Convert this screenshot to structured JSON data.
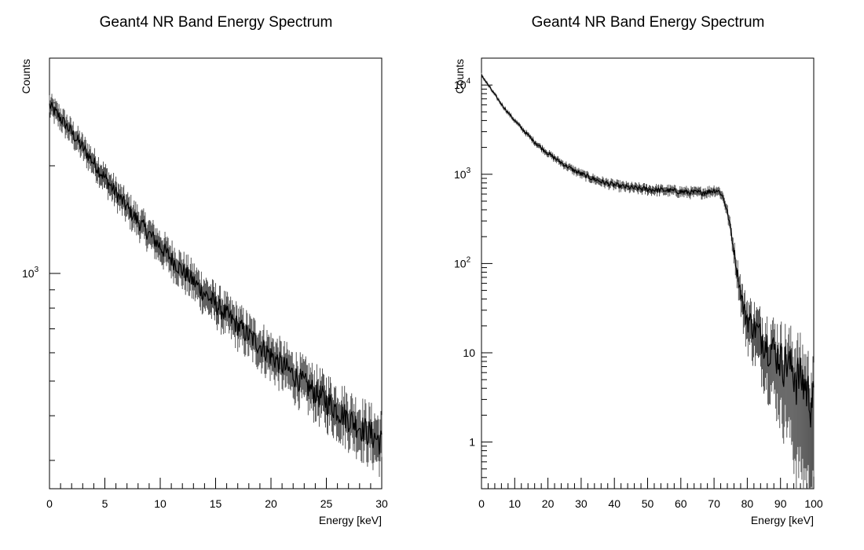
{
  "chart_data": [
    {
      "type": "line",
      "title": "Geant4 NR Band Energy Spectrum",
      "xlabel": "Energy [keV]",
      "ylabel": "Counts",
      "xlim": [
        0,
        30
      ],
      "ylim": [
        250,
        4000
      ],
      "log_y": true,
      "grid": false,
      "x_ticks": [
        0,
        5,
        10,
        15,
        20,
        25,
        30
      ],
      "y_ticks": [
        {
          "value": 1000,
          "label": "10",
          "exp": "3"
        }
      ],
      "x": [
        0,
        1,
        2,
        3,
        4,
        5,
        6,
        7,
        8,
        9,
        10,
        11,
        12,
        13,
        14,
        15,
        16,
        17,
        18,
        19,
        20,
        21,
        22,
        23,
        24,
        25,
        26,
        27,
        28,
        29,
        30
      ],
      "y": [
        2950,
        2720,
        2480,
        2250,
        2040,
        1850,
        1680,
        1530,
        1400,
        1290,
        1190,
        1100,
        1020,
        950,
        880,
        820,
        765,
        715,
        670,
        630,
        590,
        555,
        522,
        492,
        465,
        440,
        416,
        394,
        374,
        355,
        338
      ]
    },
    {
      "type": "line",
      "title": "Geant4 NR Band Energy Spectrum",
      "xlabel": "Energy [keV]",
      "ylabel": "Counts",
      "xlim": [
        0,
        100
      ],
      "ylim": [
        0.3,
        20000
      ],
      "log_y": true,
      "grid": false,
      "x_ticks": [
        0,
        10,
        20,
        30,
        40,
        50,
        60,
        70,
        80,
        90,
        100
      ],
      "y_ticks": [
        {
          "value": 1,
          "label": "1",
          "exp": ""
        },
        {
          "value": 10,
          "label": "10",
          "exp": ""
        },
        {
          "value": 100,
          "label": "10",
          "exp": "2"
        },
        {
          "value": 1000,
          "label": "10",
          "exp": "3"
        },
        {
          "value": 10000,
          "label": "10",
          "exp": "4"
        }
      ],
      "x": [
        0,
        2,
        4,
        6,
        8,
        10,
        12,
        14,
        16,
        18,
        20,
        22,
        24,
        26,
        28,
        30,
        32,
        34,
        36,
        38,
        40,
        42,
        44,
        46,
        48,
        50,
        52,
        54,
        56,
        58,
        60,
        62,
        64,
        66,
        68,
        70,
        71,
        72,
        73,
        74,
        75,
        76,
        77,
        78,
        79,
        80,
        82,
        84,
        86,
        88,
        90,
        92,
        94,
        96,
        98,
        100
      ],
      "y": [
        13000,
        10000,
        7800,
        6100,
        4900,
        4000,
        3300,
        2750,
        2300,
        1980,
        1720,
        1520,
        1350,
        1210,
        1100,
        1010,
        940,
        880,
        830,
        790,
        760,
        735,
        715,
        700,
        690,
        680,
        670,
        665,
        660,
        650,
        640,
        630,
        625,
        625,
        635,
        660,
        660,
        620,
        520,
        380,
        240,
        140,
        80,
        50,
        30,
        25,
        20,
        16,
        13,
        11,
        9,
        8,
        6.5,
        5.5,
        4,
        3
      ]
    }
  ]
}
